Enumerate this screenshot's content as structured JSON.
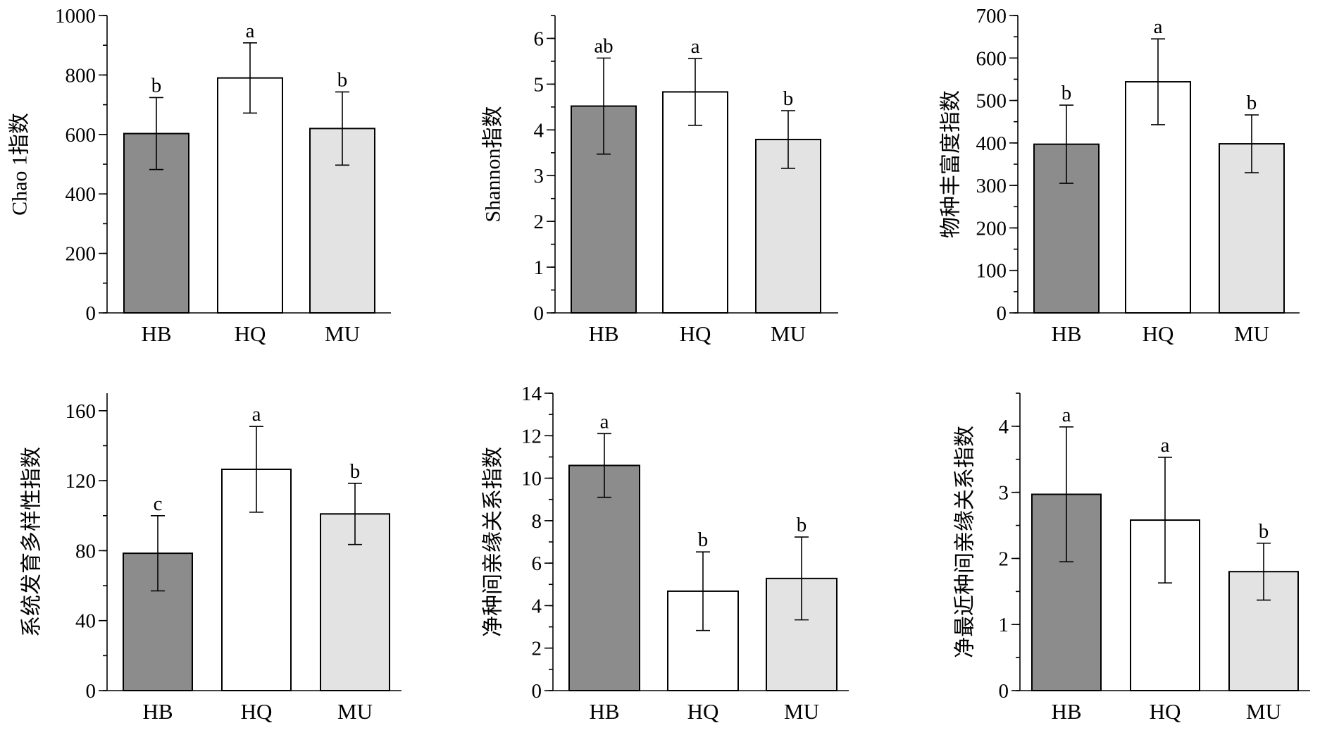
{
  "colors": {
    "HB": "#8c8c8c",
    "HQ": "#ffffff",
    "MU": "#e3e3e3"
  },
  "chart_data": [
    {
      "type": "bar",
      "ylabel": "Chao 1指数",
      "categories": [
        "HB",
        "HQ",
        "MU"
      ],
      "values": [
        603,
        790,
        620
      ],
      "errors": [
        121,
        118,
        123
      ],
      "significance": [
        "b",
        "a",
        "b"
      ],
      "ylim": [
        0,
        1000
      ],
      "yticks": [
        0,
        200,
        400,
        600,
        800,
        1000
      ],
      "ytick_labels": [
        "0",
        "200",
        "400",
        "600",
        "800",
        "1000"
      ],
      "minor_step": 100
    },
    {
      "type": "bar",
      "ylabel": "Shannon指数",
      "categories": [
        "HB",
        "HQ",
        "MU"
      ],
      "values": [
        4.52,
        4.83,
        3.79
      ],
      "errors": [
        1.05,
        0.73,
        0.63
      ],
      "significance": [
        "ab",
        "a",
        "b"
      ],
      "ylim": [
        0,
        6.5
      ],
      "yticks": [
        0,
        1,
        2,
        3,
        4,
        5,
        6
      ],
      "ytick_labels": [
        "0",
        "1",
        "2",
        "3",
        "4",
        "5",
        "6"
      ],
      "minor_step": 0.5
    },
    {
      "type": "bar",
      "ylabel": "物种丰富度指数",
      "categories": [
        "HB",
        "HQ",
        "MU"
      ],
      "values": [
        397,
        544,
        398
      ],
      "errors": [
        92,
        101,
        68
      ],
      "significance": [
        "b",
        "a",
        "b"
      ],
      "ylim": [
        0,
        700
      ],
      "yticks": [
        0,
        100,
        200,
        300,
        400,
        500,
        600,
        700
      ],
      "ytick_labels": [
        "0",
        "100",
        "200",
        "300",
        "400",
        "500",
        "600",
        "700"
      ],
      "minor_step": 50
    },
    {
      "type": "bar",
      "ylabel": "系统发育多样性指数",
      "categories": [
        "HB",
        "HQ",
        "MU"
      ],
      "values": [
        78.5,
        126.5,
        101
      ],
      "errors": [
        21.5,
        24.5,
        17.5
      ],
      "significance": [
        "c",
        "a",
        "b"
      ],
      "ylim": [
        0,
        170
      ],
      "yticks": [
        0,
        40,
        80,
        120,
        160
      ],
      "ytick_labels": [
        "0",
        "40",
        "80",
        "120",
        "160"
      ],
      "minor_step": 20
    },
    {
      "type": "bar",
      "ylabel": "净种间亲缘关系指数",
      "categories": [
        "HB",
        "HQ",
        "MU"
      ],
      "values": [
        10.6,
        4.68,
        5.28
      ],
      "errors": [
        1.5,
        1.85,
        1.95
      ],
      "significance": [
        "a",
        "b",
        "b"
      ],
      "ylim": [
        0,
        14
      ],
      "yticks": [
        0,
        2,
        4,
        6,
        8,
        10,
        12,
        14
      ],
      "ytick_labels": [
        "0",
        "2",
        "4",
        "6",
        "8",
        "10",
        "12",
        "14"
      ],
      "minor_step": 1
    },
    {
      "type": "bar",
      "ylabel": "净最近种间亲缘关系指数",
      "categories": [
        "HB",
        "HQ",
        "MU"
      ],
      "values": [
        2.97,
        2.58,
        1.8
      ],
      "errors": [
        1.02,
        0.95,
        0.43
      ],
      "significance": [
        "a",
        "a",
        "b"
      ],
      "ylim": [
        0,
        4.5
      ],
      "yticks": [
        0,
        1,
        2,
        3,
        4
      ],
      "ytick_labels": [
        "0",
        "1",
        "2",
        "3",
        "4"
      ],
      "minor_step": 0.5
    }
  ]
}
